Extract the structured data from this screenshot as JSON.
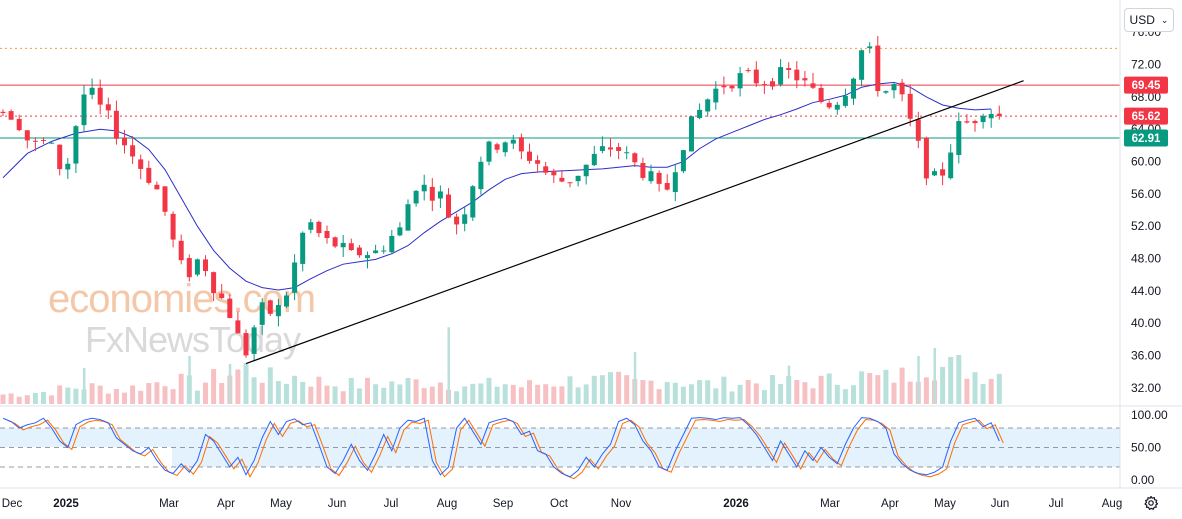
{
  "toolbar": {
    "currency_label": "USD",
    "settings_icon": "gear-icon",
    "chevron_icon": "chevron-down-icon"
  },
  "watermark": {
    "line1": "economies.com",
    "line2": "FxNewsToday"
  },
  "chart_data": {
    "type": "candlestick",
    "title": "",
    "price_axis": {
      "ylim": [
        30.0,
        79.0
      ],
      "ticks": [
        "76.00",
        "72.00",
        "68.00",
        "64.00",
        "60.00",
        "56.00",
        "52.00",
        "48.00",
        "44.00",
        "40.00",
        "36.00",
        "32.00"
      ]
    },
    "time_axis": {
      "ticks": [
        {
          "label": "Dec",
          "bold": false
        },
        {
          "label": "2025",
          "bold": true
        },
        {
          "label": "Mar",
          "bold": false
        },
        {
          "label": "Apr",
          "bold": false
        },
        {
          "label": "May",
          "bold": false
        },
        {
          "label": "Jun",
          "bold": false
        },
        {
          "label": "Jul",
          "bold": false
        },
        {
          "label": "Aug",
          "bold": false
        },
        {
          "label": "Sep",
          "bold": false
        },
        {
          "label": "Oct",
          "bold": false
        },
        {
          "label": "Nov",
          "bold": false
        },
        {
          "label": "2026",
          "bold": true
        },
        {
          "label": "Mar",
          "bold": false
        },
        {
          "label": "Apr",
          "bold": false
        },
        {
          "label": "May",
          "bold": false
        },
        {
          "label": "Jun",
          "bold": false
        },
        {
          "label": "Jul",
          "bold": false
        },
        {
          "label": "Aug",
          "bold": false
        }
      ]
    },
    "price_path": [
      [
        0,
        66.5
      ],
      [
        2,
        65.8
      ],
      [
        4,
        61.8
      ],
      [
        6,
        62.5
      ],
      [
        8,
        58.5
      ],
      [
        9,
        61.5
      ],
      [
        10,
        67.6
      ],
      [
        11,
        69.0
      ],
      [
        12,
        67.2
      ],
      [
        13,
        66.0
      ],
      [
        15,
        63.0
      ],
      [
        17,
        60.0
      ],
      [
        19,
        57.5
      ],
      [
        20,
        55.5
      ],
      [
        21,
        52.0
      ],
      [
        22,
        48.0
      ],
      [
        23,
        45.8
      ],
      [
        24,
        47.0
      ],
      [
        25,
        48.5
      ],
      [
        26,
        45.5
      ],
      [
        27,
        44.0
      ],
      [
        28,
        42.0
      ],
      [
        29,
        40.5
      ],
      [
        30,
        36.0
      ],
      [
        31,
        37.0
      ],
      [
        32,
        42.0
      ],
      [
        33,
        41.2
      ],
      [
        34,
        41.5
      ],
      [
        35,
        42.0
      ],
      [
        36,
        45.5
      ],
      [
        37,
        49.0
      ],
      [
        38,
        53.0
      ],
      [
        39,
        51.5
      ],
      [
        40,
        50.5
      ],
      [
        41,
        49.5
      ],
      [
        42,
        50.0
      ],
      [
        43,
        48.0
      ],
      [
        44,
        48.5
      ],
      [
        45,
        49.0
      ],
      [
        46,
        48.5
      ],
      [
        47,
        49.0
      ],
      [
        48,
        50.5
      ],
      [
        49,
        51.0
      ],
      [
        50,
        52.0
      ],
      [
        51,
        57.5
      ],
      [
        53,
        56.5
      ],
      [
        55,
        55.5
      ],
      [
        56,
        51.5
      ],
      [
        57,
        53.5
      ],
      [
        58,
        55.0
      ],
      [
        59,
        60.0
      ],
      [
        61,
        62.0
      ],
      [
        63,
        63.0
      ],
      [
        64,
        61.0
      ],
      [
        66,
        60.5
      ],
      [
        68,
        58.0
      ],
      [
        70,
        57.5
      ],
      [
        72,
        59.0
      ],
      [
        74,
        61.0
      ],
      [
        76,
        62.0
      ],
      [
        78,
        60.0
      ],
      [
        80,
        58.5
      ],
      [
        81,
        57.0
      ],
      [
        82,
        55.5
      ],
      [
        83,
        58.0
      ],
      [
        84,
        61.5
      ],
      [
        86,
        65.5
      ],
      [
        88,
        68.5
      ],
      [
        90,
        70.0
      ],
      [
        92,
        70.5
      ],
      [
        94,
        70.0
      ],
      [
        96,
        70.5
      ],
      [
        98,
        71.0
      ],
      [
        100,
        69.0
      ],
      [
        102,
        67.0
      ],
      [
        104,
        68.0
      ],
      [
        106,
        72.0
      ],
      [
        107,
        75.5
      ],
      [
        108,
        71.0
      ],
      [
        109,
        68.0
      ],
      [
        110,
        69.5
      ],
      [
        111,
        69.0
      ],
      [
        112,
        66.0
      ],
      [
        113,
        63.5
      ],
      [
        114,
        60.0
      ],
      [
        115,
        58.0
      ],
      [
        116,
        57.5
      ],
      [
        117,
        60.0
      ],
      [
        118,
        63.5
      ],
      [
        119,
        65.0
      ],
      [
        120,
        64.5
      ],
      [
        121,
        66.5
      ],
      [
        122,
        67.0
      ],
      [
        123,
        65.6
      ]
    ],
    "moving_average": [
      [
        0,
        58.0
      ],
      [
        3,
        61.0
      ],
      [
        6,
        62.5
      ],
      [
        9,
        63.5
      ],
      [
        12,
        64.0
      ],
      [
        14,
        63.8
      ],
      [
        16,
        63.0
      ],
      [
        18,
        61.5
      ],
      [
        20,
        59.0
      ],
      [
        22,
        55.5
      ],
      [
        24,
        52.0
      ],
      [
        26,
        49.0
      ],
      [
        28,
        46.8
      ],
      [
        30,
        45.2
      ],
      [
        32,
        44.4
      ],
      [
        34,
        44.1
      ],
      [
        36,
        44.4
      ],
      [
        38,
        45.5
      ],
      [
        40,
        46.5
      ],
      [
        42,
        47.3
      ],
      [
        44,
        47.6
      ],
      [
        46,
        47.9
      ],
      [
        48,
        48.6
      ],
      [
        50,
        49.6
      ],
      [
        52,
        51.2
      ],
      [
        54,
        52.6
      ],
      [
        56,
        53.8
      ],
      [
        58,
        55.0
      ],
      [
        60,
        56.5
      ],
      [
        62,
        57.8
      ],
      [
        64,
        58.5
      ],
      [
        66,
        58.7
      ],
      [
        68,
        58.8
      ],
      [
        70,
        58.9
      ],
      [
        72,
        59.0
      ],
      [
        74,
        59.1
      ],
      [
        76,
        59.3
      ],
      [
        78,
        59.5
      ],
      [
        80,
        59.3
      ],
      [
        82,
        59.3
      ],
      [
        84,
        60.0
      ],
      [
        86,
        61.6
      ],
      [
        88,
        62.8
      ],
      [
        90,
        63.6
      ],
      [
        92,
        64.4
      ],
      [
        94,
        65.2
      ],
      [
        96,
        65.8
      ],
      [
        98,
        66.5
      ],
      [
        100,
        67.3
      ],
      [
        102,
        67.7
      ],
      [
        104,
        68.2
      ],
      [
        106,
        69.2
      ],
      [
        108,
        69.6
      ],
      [
        110,
        69.8
      ],
      [
        112,
        69.2
      ],
      [
        114,
        68.0
      ],
      [
        116,
        67.0
      ],
      [
        118,
        66.6
      ],
      [
        120,
        66.4
      ],
      [
        122,
        66.5
      ]
    ],
    "trendline": [
      [
        30,
        35.0
      ],
      [
        126,
        70.0
      ]
    ],
    "volume": [
      [
        0,
        1.2
      ],
      [
        5,
        1.5
      ],
      [
        10,
        2.2
      ],
      [
        15,
        1.8
      ],
      [
        18,
        2.5
      ],
      [
        20,
        3.0
      ],
      [
        22,
        2.8
      ],
      [
        24,
        2.4
      ],
      [
        26,
        3.2
      ],
      [
        28,
        3.8
      ],
      [
        30,
        4.5
      ],
      [
        32,
        3.6
      ],
      [
        34,
        3.0
      ],
      [
        36,
        3.4
      ],
      [
        38,
        3.0
      ],
      [
        40,
        2.6
      ],
      [
        42,
        2.4
      ],
      [
        45,
        2.5
      ],
      [
        48,
        2.6
      ],
      [
        50,
        2.7
      ],
      [
        52,
        2.8
      ],
      [
        54,
        2.8
      ],
      [
        56,
        2.5
      ],
      [
        58,
        2.2
      ],
      [
        60,
        2.4
      ],
      [
        62,
        2.6
      ],
      [
        64,
        2.2
      ],
      [
        66,
        2.5
      ],
      [
        68,
        2.7
      ],
      [
        70,
        2.9
      ],
      [
        72,
        3.0
      ],
      [
        74,
        2.8
      ],
      [
        76,
        3.0
      ],
      [
        78,
        2.6
      ],
      [
        80,
        2.8
      ],
      [
        82,
        3.2
      ],
      [
        84,
        2.8
      ],
      [
        86,
        2.6
      ],
      [
        88,
        2.4
      ],
      [
        90,
        2.6
      ],
      [
        92,
        2.8
      ],
      [
        94,
        2.6
      ],
      [
        96,
        2.6
      ],
      [
        98,
        2.8
      ],
      [
        100,
        2.8
      ],
      [
        102,
        2.9
      ],
      [
        104,
        3.0
      ],
      [
        106,
        3.5
      ],
      [
        108,
        3.2
      ],
      [
        110,
        3.4
      ],
      [
        112,
        3.8
      ],
      [
        114,
        5.0
      ],
      [
        116,
        4.5
      ],
      [
        118,
        4.8
      ],
      [
        120,
        4.0
      ],
      [
        122,
        3.8
      ]
    ],
    "volume_spikes": [
      [
        10,
        4.5
      ],
      [
        23,
        6.0
      ],
      [
        28,
        5.0
      ],
      [
        55,
        9.6
      ],
      [
        78,
        6.5
      ],
      [
        97,
        4.8
      ],
      [
        113,
        6.0
      ],
      [
        115,
        7.0
      ]
    ],
    "stochastic": {
      "ylim": [
        0,
        100
      ],
      "ticks": [
        "100.00",
        "50.00",
        "0.00"
      ],
      "bands": [
        80,
        20
      ],
      "k_line": [
        [
          0,
          95
        ],
        [
          1,
          90
        ],
        [
          2,
          80
        ],
        [
          3,
          85
        ],
        [
          4,
          88
        ],
        [
          5,
          95
        ],
        [
          6,
          80
        ],
        [
          7,
          60
        ],
        [
          8,
          50
        ],
        [
          9,
          85
        ],
        [
          10,
          92
        ],
        [
          11,
          95
        ],
        [
          12,
          93
        ],
        [
          13,
          88
        ],
        [
          14,
          65
        ],
        [
          15,
          55
        ],
        [
          16,
          45
        ],
        [
          17,
          40
        ],
        [
          18,
          50
        ],
        [
          19,
          30
        ],
        [
          20,
          15
        ],
        [
          21,
          10
        ],
        [
          22,
          25
        ],
        [
          23,
          12
        ],
        [
          24,
          30
        ],
        [
          25,
          70
        ],
        [
          26,
          60
        ],
        [
          27,
          40
        ],
        [
          28,
          20
        ],
        [
          29,
          35
        ],
        [
          30,
          8
        ],
        [
          31,
          30
        ],
        [
          32,
          65
        ],
        [
          33,
          90
        ],
        [
          34,
          70
        ],
        [
          35,
          90
        ],
        [
          36,
          94
        ],
        [
          37,
          85
        ],
        [
          38,
          88
        ],
        [
          39,
          55
        ],
        [
          40,
          20
        ],
        [
          41,
          10
        ],
        [
          42,
          30
        ],
        [
          43,
          55
        ],
        [
          44,
          30
        ],
        [
          45,
          15
        ],
        [
          46,
          40
        ],
        [
          47,
          70
        ],
        [
          48,
          45
        ],
        [
          49,
          80
        ],
        [
          50,
          92
        ],
        [
          51,
          90
        ],
        [
          52,
          95
        ],
        [
          53,
          30
        ],
        [
          54,
          8
        ],
        [
          55,
          20
        ],
        [
          56,
          80
        ],
        [
          57,
          95
        ],
        [
          58,
          75
        ],
        [
          59,
          55
        ],
        [
          60,
          88
        ],
        [
          61,
          92
        ],
        [
          62,
          95
        ],
        [
          63,
          90
        ],
        [
          64,
          70
        ],
        [
          65,
          75
        ],
        [
          66,
          45
        ],
        [
          67,
          40
        ],
        [
          68,
          20
        ],
        [
          69,
          10
        ],
        [
          70,
          5
        ],
        [
          71,
          15
        ],
        [
          72,
          35
        ],
        [
          73,
          20
        ],
        [
          74,
          40
        ],
        [
          75,
          55
        ],
        [
          76,
          90
        ],
        [
          77,
          95
        ],
        [
          78,
          85
        ],
        [
          79,
          60
        ],
        [
          80,
          45
        ],
        [
          81,
          20
        ],
        [
          82,
          15
        ],
        [
          83,
          45
        ],
        [
          84,
          70
        ],
        [
          85,
          95
        ],
        [
          86,
          96
        ],
        [
          87,
          95
        ],
        [
          88,
          93
        ],
        [
          89,
          96
        ],
        [
          90,
          95
        ],
        [
          91,
          96
        ],
        [
          92,
          85
        ],
        [
          93,
          70
        ],
        [
          94,
          50
        ],
        [
          95,
          30
        ],
        [
          96,
          60
        ],
        [
          97,
          40
        ],
        [
          98,
          20
        ],
        [
          99,
          45
        ],
        [
          100,
          30
        ],
        [
          101,
          50
        ],
        [
          102,
          35
        ],
        [
          103,
          25
        ],
        [
          104,
          55
        ],
        [
          105,
          80
        ],
        [
          106,
          96
        ],
        [
          107,
          95
        ],
        [
          108,
          90
        ],
        [
          109,
          80
        ],
        [
          110,
          40
        ],
        [
          111,
          25
        ],
        [
          112,
          15
        ],
        [
          113,
          10
        ],
        [
          114,
          8
        ],
        [
          115,
          12
        ],
        [
          116,
          20
        ],
        [
          117,
          60
        ],
        [
          118,
          88
        ],
        [
          119,
          92
        ],
        [
          120,
          95
        ],
        [
          121,
          82
        ],
        [
          122,
          88
        ],
        [
          123,
          60
        ]
      ],
      "d_offset": -3
    },
    "horizontal_levels": [
      {
        "price": 74.0,
        "style": "dotted",
        "color": "#f59d3d"
      },
      {
        "price": 69.45,
        "style": "solid",
        "color": "#f23645",
        "label": "69.45"
      },
      {
        "price": 65.62,
        "style": "dotted",
        "color": "#f23645",
        "label": "65.62"
      },
      {
        "price": 62.91,
        "style": "solid",
        "color": "#089981",
        "label": "62.91"
      }
    ],
    "colors": {
      "up": "#089981",
      "down": "#f23645",
      "ma": "#2b2eca",
      "trend": "#000000",
      "k_line": "#2962ff",
      "d_line": "#ff6d00",
      "band_fill": "#e3f2fd",
      "vol_up": "#b9e1db",
      "vol_down": "#f7c1c4"
    }
  }
}
